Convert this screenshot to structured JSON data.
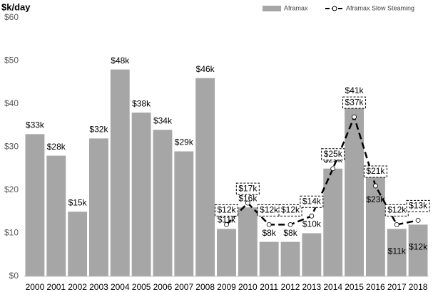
{
  "chart_data": {
    "type": "bar",
    "y_axis_label": "$k/day",
    "categories": [
      "2000",
      "2001",
      "2002",
      "2003",
      "2004",
      "2005",
      "2006",
      "2007",
      "2008",
      "2009",
      "2010",
      "2011",
      "2012",
      "2013",
      "2014",
      "2015",
      "2016",
      "2017",
      "2018"
    ],
    "series": [
      {
        "name": "Aframax",
        "type": "bar",
        "color": "#a6a6a6",
        "values": [
          33,
          28,
          15,
          32,
          48,
          38,
          34,
          29,
          46,
          11,
          16,
          8,
          8,
          10,
          25,
          41,
          23,
          11,
          12
        ],
        "value_labels": [
          "$33k",
          "$28k",
          "$15k",
          "$32k",
          "$48k",
          "$38k",
          "$34k",
          "$29k",
          "$46k",
          "$11k",
          "$16k",
          "$8k",
          "$8k",
          "$10k",
          "$25k",
          "$41k",
          "$23k",
          "$11k",
          "$12k"
        ]
      },
      {
        "name": "Aframax Slow Steaming",
        "type": "line",
        "color": "#000000",
        "values": [
          null,
          null,
          null,
          null,
          null,
          null,
          null,
          null,
          null,
          12,
          17,
          12,
          12,
          14,
          25,
          37,
          21,
          12,
          13
        ],
        "value_labels": [
          null,
          null,
          null,
          null,
          null,
          null,
          null,
          null,
          null,
          "$12k",
          "$17k",
          "$12k",
          "$12k",
          "$14k",
          "$25k",
          "$37k",
          "$21k",
          "$12k",
          "$13k"
        ]
      }
    ],
    "ylim": [
      0,
      60
    ],
    "yticks": [
      {
        "value": 0,
        "label": "$0"
      },
      {
        "value": 10,
        "label": "$10"
      },
      {
        "value": 20,
        "label": "$20"
      },
      {
        "value": 30,
        "label": "$30"
      },
      {
        "value": 40,
        "label": "$40"
      },
      {
        "value": 50,
        "label": "$50"
      },
      {
        "value": 60,
        "label": "$60"
      }
    ],
    "grid": false,
    "legend": "top-right"
  }
}
